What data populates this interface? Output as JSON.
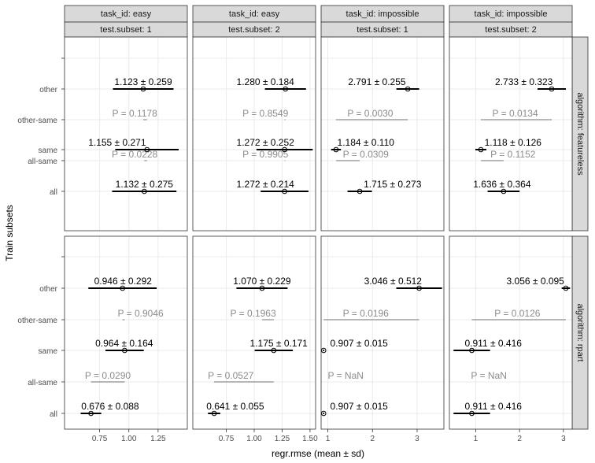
{
  "chart_data": {
    "type": "faceted-interval",
    "xlabel": "regr.rmse (mean ± sd)",
    "ylabel": "Train subsets",
    "categories": [
      "all",
      "all-same",
      "same",
      "other-same",
      "other"
    ],
    "columns": [
      {
        "task_id": "task_id: easy",
        "subset": "test.subset: 1",
        "xlim": [
          0.45,
          1.5
        ],
        "ticks": [
          0.75,
          1.0,
          1.25
        ],
        "tick_labels": [
          "0.75",
          "1.00",
          "1.25"
        ]
      },
      {
        "task_id": "task_id: easy",
        "subset": "test.subset: 2",
        "xlim": [
          0.45,
          1.55
        ],
        "ticks": [
          0.75,
          1.0,
          1.25,
          1.5
        ],
        "tick_labels": [
          "0.75",
          "1.00",
          "1.25",
          "1.50"
        ]
      },
      {
        "task_id": "task_id: impossible",
        "subset": "test.subset: 1",
        "xlim": [
          0.85,
          3.6
        ],
        "ticks": [
          1,
          2,
          3
        ],
        "tick_labels": [
          "1",
          "2",
          "3"
        ]
      },
      {
        "task_id": "task_id: impossible",
        "subset": "test.subset: 2",
        "xlim": [
          0.4,
          3.2
        ],
        "ticks": [
          1,
          2,
          3
        ],
        "tick_labels": [
          "1",
          "2",
          "3"
        ]
      }
    ],
    "rows": [
      {
        "algorithm": "algorithm: featureless",
        "panels": [
          {
            "points": [
              {
                "cat": "other",
                "mean": 1.123,
                "sd": 0.259,
                "label": "1.123 ± 0.259",
                "lx": 1.123
              },
              {
                "cat": "same",
                "mean": 1.155,
                "sd": 0.271,
                "label": "1.155 ± 0.271",
                "lx": 0.9
              },
              {
                "cat": "all",
                "mean": 1.132,
                "sd": 0.275,
                "label": "1.132 ± 0.275",
                "lx": 1.132
              }
            ],
            "pvals": [
              {
                "cat": "other-same",
                "from": 1.123,
                "to": 1.155,
                "label": "P = 0.1178",
                "lx": 1.05
              },
              {
                "cat": "all-same",
                "from": 1.132,
                "to": 1.155,
                "label": "P = 0.0228",
                "lx": 1.05
              }
            ]
          },
          {
            "points": [
              {
                "cat": "other",
                "mean": 1.28,
                "sd": 0.184,
                "label": "1.280 ± 0.184",
                "lx": 1.1
              },
              {
                "cat": "same",
                "mean": 1.272,
                "sd": 0.252,
                "label": "1.272 ± 0.252",
                "lx": 1.1
              },
              {
                "cat": "all",
                "mean": 1.272,
                "sd": 0.214,
                "label": "1.272 ± 0.214",
                "lx": 1.1
              }
            ],
            "pvals": [
              {
                "cat": "other-same",
                "from": 1.272,
                "to": 1.28,
                "label": "P = 0.8549",
                "lx": 1.1
              },
              {
                "cat": "all-same",
                "from": 1.272,
                "to": 1.272,
                "label": "P = 0.9905",
                "lx": 1.1
              }
            ]
          },
          {
            "points": [
              {
                "cat": "other",
                "mean": 2.791,
                "sd": 0.255,
                "label": "2.791 ± 0.255",
                "lx": 2.1
              },
              {
                "cat": "same",
                "mean": 1.184,
                "sd": 0.11,
                "label": "1.184 ± 0.110",
                "lx": 1.85
              },
              {
                "cat": "all",
                "mean": 1.715,
                "sd": 0.273,
                "label": "1.715 ± 0.273",
                "lx": 2.45
              }
            ],
            "pvals": [
              {
                "cat": "other-same",
                "from": 1.184,
                "to": 2.791,
                "label": "P = 0.0030",
                "lx": 1.95
              },
              {
                "cat": "all-same",
                "from": 1.184,
                "to": 1.715,
                "label": "P = 0.0309",
                "lx": 1.85
              }
            ]
          },
          {
            "points": [
              {
                "cat": "other",
                "mean": 2.733,
                "sd": 0.323,
                "label": "2.733 ± 0.323",
                "lx": 2.1
              },
              {
                "cat": "same",
                "mean": 1.118,
                "sd": 0.126,
                "label": "1.118 ± 0.126",
                "lx": 1.85
              },
              {
                "cat": "all",
                "mean": 1.636,
                "sd": 0.364,
                "label": "1.636 ± 0.364",
                "lx": 1.6
              }
            ],
            "pvals": [
              {
                "cat": "other-same",
                "from": 1.118,
                "to": 2.733,
                "label": "P = 0.0134",
                "lx": 1.9
              },
              {
                "cat": "all-same",
                "from": 1.118,
                "to": 1.636,
                "label": "P = 0.1152",
                "lx": 1.85
              }
            ]
          }
        ]
      },
      {
        "algorithm": "algorithm: rpart",
        "panels": [
          {
            "points": [
              {
                "cat": "other",
                "mean": 0.946,
                "sd": 0.292,
                "label": "0.946 ± 0.292",
                "lx": 0.95
              },
              {
                "cat": "same",
                "mean": 0.964,
                "sd": 0.164,
                "label": "0.964 ± 0.164",
                "lx": 0.96
              },
              {
                "cat": "all",
                "mean": 0.676,
                "sd": 0.088,
                "label": "0.676 ± 0.088",
                "lx": 0.84
              }
            ],
            "pvals": [
              {
                "cat": "other-same",
                "from": 0.946,
                "to": 0.964,
                "label": "P = 0.9046",
                "lx": 1.1
              },
              {
                "cat": "all-same",
                "from": 0.676,
                "to": 0.964,
                "label": "P = 0.0290",
                "lx": 0.82
              }
            ]
          },
          {
            "points": [
              {
                "cat": "other",
                "mean": 1.07,
                "sd": 0.229,
                "label": "1.070 ± 0.229",
                "lx": 1.07
              },
              {
                "cat": "same",
                "mean": 1.175,
                "sd": 0.171,
                "label": "1.175 ± 0.171",
                "lx": 1.22
              },
              {
                "cat": "all",
                "mean": 0.641,
                "sd": 0.055,
                "label": "0.641 ± 0.055",
                "lx": 0.83
              }
            ],
            "pvals": [
              {
                "cat": "other-same",
                "from": 1.07,
                "to": 1.175,
                "label": "P = 0.1963",
                "lx": 0.99
              },
              {
                "cat": "all-same",
                "from": 0.641,
                "to": 1.175,
                "label": "P = 0.0527",
                "lx": 0.79
              }
            ]
          },
          {
            "points": [
              {
                "cat": "other",
                "mean": 3.046,
                "sd": 0.512,
                "label": "3.046 ± 0.512",
                "lx": 2.46
              },
              {
                "cat": "same",
                "mean": 0.907,
                "sd": 0.015,
                "label": "0.907 ± 0.015",
                "lx": 1.7
              },
              {
                "cat": "all",
                "mean": 0.907,
                "sd": 0.015,
                "label": "0.907 ± 0.015",
                "lx": 1.7
              }
            ],
            "pvals": [
              {
                "cat": "other-same",
                "from": 0.907,
                "to": 3.046,
                "label": "P = 0.0196",
                "lx": 1.85
              },
              {
                "cat": "all-same",
                "from": null,
                "to": null,
                "label": "P = NaN",
                "lx": 1.4
              }
            ]
          },
          {
            "points": [
              {
                "cat": "other",
                "mean": 3.056,
                "sd": 0.095,
                "label": "3.056 ± 0.095",
                "lx": 2.36
              },
              {
                "cat": "same",
                "mean": 0.911,
                "sd": 0.416,
                "label": "0.911 ± 0.416",
                "lx": 1.4
              },
              {
                "cat": "all",
                "mean": 0.911,
                "sd": 0.416,
                "label": "0.911 ± 0.416",
                "lx": 1.4
              }
            ],
            "pvals": [
              {
                "cat": "other-same",
                "from": 0.911,
                "to": 3.056,
                "label": "P = 0.0126",
                "lx": 1.95
              },
              {
                "cat": "all-same",
                "from": null,
                "to": null,
                "label": "P = NaN",
                "lx": 1.3
              }
            ]
          }
        ]
      }
    ],
    "colors": {
      "panel_border": "#333333",
      "strip_fill": "#d9d9d9",
      "grid_major": "#ebebeb",
      "grid_minor": "#f5f5f5",
      "point_text": "#000000",
      "pval_text": "#8c8c8c",
      "axis_text": "#4d4d4d"
    }
  }
}
